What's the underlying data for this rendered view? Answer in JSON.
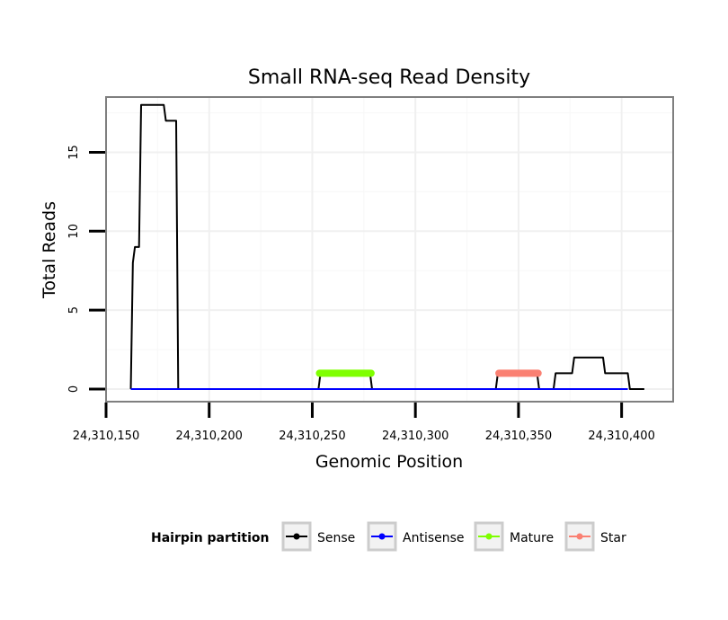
{
  "chart_data": {
    "type": "line",
    "title": "Small RNA-seq Read Density",
    "xlabel": "Genomic Position",
    "ylabel": "Total Reads",
    "xlim": [
      24310150,
      24310425
    ],
    "ylim": [
      -0.8,
      18.5
    ],
    "x_ticks": [
      24310150,
      24310200,
      24310250,
      24310300,
      24310350,
      24310400
    ],
    "x_tick_labels": [
      "24,310,150",
      "24,310,200",
      "24,310,250",
      "24,310,300",
      "24,310,350",
      "24,310,400"
    ],
    "y_ticks": [
      0,
      5,
      10,
      15
    ],
    "y_tick_labels": [
      "0",
      "5",
      "10",
      "15"
    ],
    "grid": true,
    "legend_position": "bottom",
    "legend_title": "Hairpin partition",
    "series": [
      {
        "name": "Sense",
        "color": "#000000",
        "points": [
          [
            24310162,
            0
          ],
          [
            24310163,
            8
          ],
          [
            24310164,
            9
          ],
          [
            24310166,
            9
          ],
          [
            24310167,
            18
          ],
          [
            24310178,
            18
          ],
          [
            24310179,
            17
          ],
          [
            24310184,
            17
          ],
          [
            24310185,
            0
          ],
          [
            24310253,
            0
          ],
          [
            24310254,
            1
          ],
          [
            24310278,
            1
          ],
          [
            24310279,
            0
          ],
          [
            24310339,
            0
          ],
          [
            24310340,
            1
          ],
          [
            24310359,
            1
          ],
          [
            24310360,
            0
          ],
          [
            24310367,
            0
          ],
          [
            24310368,
            1
          ],
          [
            24310376,
            1
          ],
          [
            24310377,
            2
          ],
          [
            24310391,
            2
          ],
          [
            24310392,
            1
          ],
          [
            24310403,
            1
          ],
          [
            24310404,
            0
          ],
          [
            24310411,
            0
          ]
        ]
      },
      {
        "name": "Antisense",
        "color": "#0000ff",
        "points": [
          [
            24310162,
            0
          ],
          [
            24310403,
            0
          ]
        ]
      },
      {
        "name": "Mature",
        "color": "#7fff00",
        "points": [
          [
            24310253.5,
            1
          ],
          [
            24310278.5,
            1
          ]
        ]
      },
      {
        "name": "Star",
        "color": "#fa8072",
        "points": [
          [
            24310340.5,
            1
          ],
          [
            24310359.5,
            1
          ]
        ]
      }
    ]
  }
}
